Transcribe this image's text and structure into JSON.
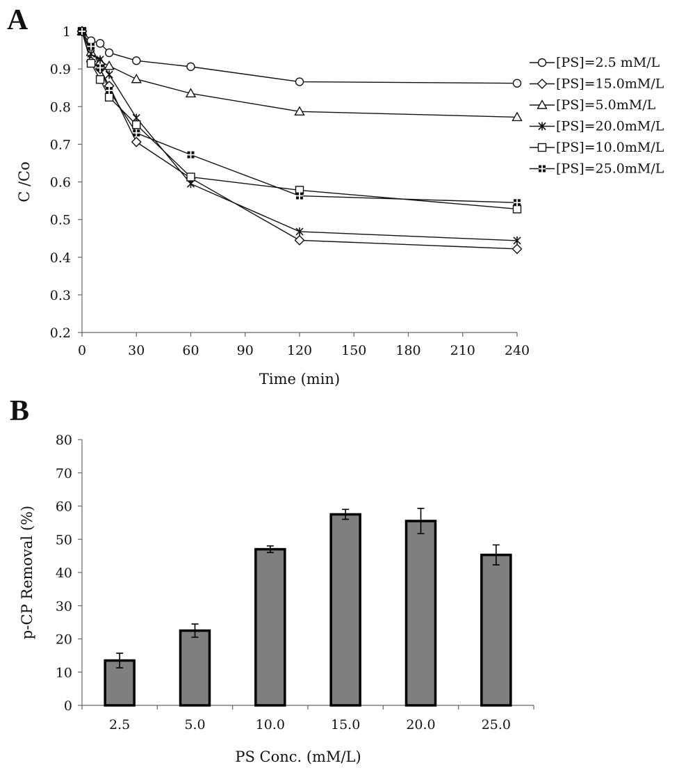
{
  "panel_labels": {
    "a": "A",
    "b": "B"
  },
  "chart_data": [
    {
      "type": "line",
      "panel": "A",
      "xlabel": "Time (min)",
      "ylabel": "C /Co",
      "xlim": [
        0,
        240
      ],
      "ylim": [
        0.2,
        1.0
      ],
      "x_ticks": [
        "0",
        "30",
        "60",
        "90",
        "120",
        "150",
        "180",
        "210",
        "240"
      ],
      "y_ticks": [
        "0.2",
        "0.3",
        "0.4",
        "0.5",
        "0.6",
        "0.7",
        "0.8",
        "0.9",
        "1"
      ],
      "grid": false,
      "legend_position": "right",
      "x": [
        0,
        5,
        10,
        15,
        30,
        60,
        120,
        240
      ],
      "series": [
        {
          "name": "[PS]=2.5 mM/L",
          "marker": "circle",
          "values": [
            1.0,
            0.975,
            0.968,
            0.943,
            0.922,
            0.906,
            0.866,
            0.862
          ]
        },
        {
          "name": "[PS]=15.0mM/L",
          "marker": "diamond",
          "values": [
            1.0,
            0.92,
            0.9,
            0.855,
            0.706,
            0.61,
            0.445,
            0.422
          ]
        },
        {
          "name": "[PS]=5.0mM/L",
          "marker": "triangle",
          "values": [
            1.0,
            0.945,
            0.92,
            0.908,
            0.873,
            0.835,
            0.787,
            0.772
          ]
        },
        {
          "name": "[PS]=20.0mM/L",
          "marker": "star",
          "values": [
            1.0,
            0.94,
            0.925,
            0.885,
            0.77,
            0.595,
            0.468,
            0.444
          ]
        },
        {
          "name": "[PS]=10.0mM/L",
          "marker": "square",
          "values": [
            1.0,
            0.915,
            0.872,
            0.825,
            0.752,
            0.613,
            0.578,
            0.528
          ]
        },
        {
          "name": "[PS]=25.0mM/L",
          "marker": "plus-square",
          "values": [
            1.0,
            0.96,
            0.903,
            0.843,
            0.73,
            0.672,
            0.563,
            0.545
          ]
        }
      ]
    },
    {
      "type": "bar",
      "panel": "B",
      "xlabel": "PS Conc. (mM/L)",
      "ylabel": "p-CP Removal (%)",
      "ylim": [
        0,
        80
      ],
      "y_ticks": [
        "0",
        "10",
        "20",
        "30",
        "40",
        "50",
        "60",
        "70",
        "80"
      ],
      "grid": false,
      "bar_color": "#7f7f7f",
      "categories": [
        "2.5",
        "5.0",
        "10.0",
        "15.0",
        "20.0",
        "25.0"
      ],
      "values": [
        13.5,
        22.5,
        47.0,
        57.5,
        55.5,
        45.3
      ],
      "errors": [
        2.2,
        2.0,
        1.0,
        1.5,
        3.8,
        3.0
      ]
    }
  ]
}
